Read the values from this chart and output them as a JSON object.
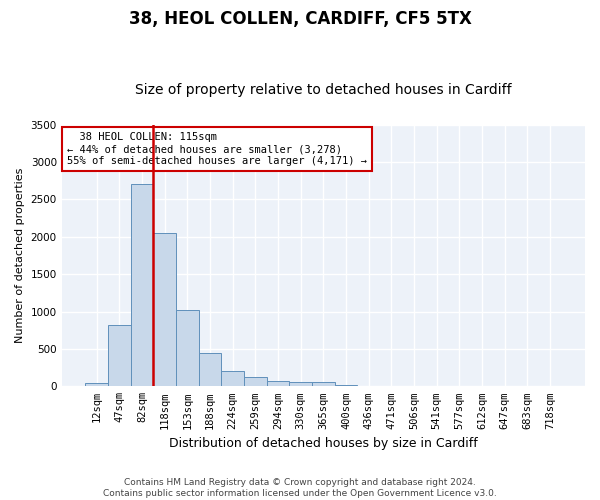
{
  "title1": "38, HEOL COLLEN, CARDIFF, CF5 5TX",
  "title2": "Size of property relative to detached houses in Cardiff",
  "xlabel": "Distribution of detached houses by size in Cardiff",
  "ylabel": "Number of detached properties",
  "categories": [
    "12sqm",
    "47sqm",
    "82sqm",
    "118sqm",
    "153sqm",
    "188sqm",
    "224sqm",
    "259sqm",
    "294sqm",
    "330sqm",
    "365sqm",
    "400sqm",
    "436sqm",
    "471sqm",
    "506sqm",
    "541sqm",
    "577sqm",
    "612sqm",
    "647sqm",
    "683sqm",
    "718sqm"
  ],
  "values": [
    50,
    820,
    2700,
    2050,
    1020,
    450,
    200,
    130,
    75,
    55,
    55,
    20,
    10,
    8,
    4,
    2,
    1,
    0,
    0,
    0,
    0
  ],
  "bar_color": "#c8d8ea",
  "bar_edge_color": "#6090bb",
  "vline_color": "#cc0000",
  "vline_index": 2.5,
  "ylim": [
    0,
    3500
  ],
  "yticks": [
    0,
    500,
    1000,
    1500,
    2000,
    2500,
    3000,
    3500
  ],
  "annotation_text": "  38 HEOL COLLEN: 115sqm\n← 44% of detached houses are smaller (3,278)\n55% of semi-detached houses are larger (4,171) →",
  "annotation_box_color": "#ffffff",
  "annotation_box_edge": "#cc0000",
  "footer_text": "Contains HM Land Registry data © Crown copyright and database right 2024.\nContains public sector information licensed under the Open Government Licence v3.0.",
  "bg_color": "#ffffff",
  "plot_bg_color": "#edf2f9",
  "grid_color": "#ffffff",
  "title1_fontsize": 12,
  "title2_fontsize": 10,
  "xlabel_fontsize": 9,
  "ylabel_fontsize": 8,
  "tick_fontsize": 7.5,
  "footer_fontsize": 6.5
}
